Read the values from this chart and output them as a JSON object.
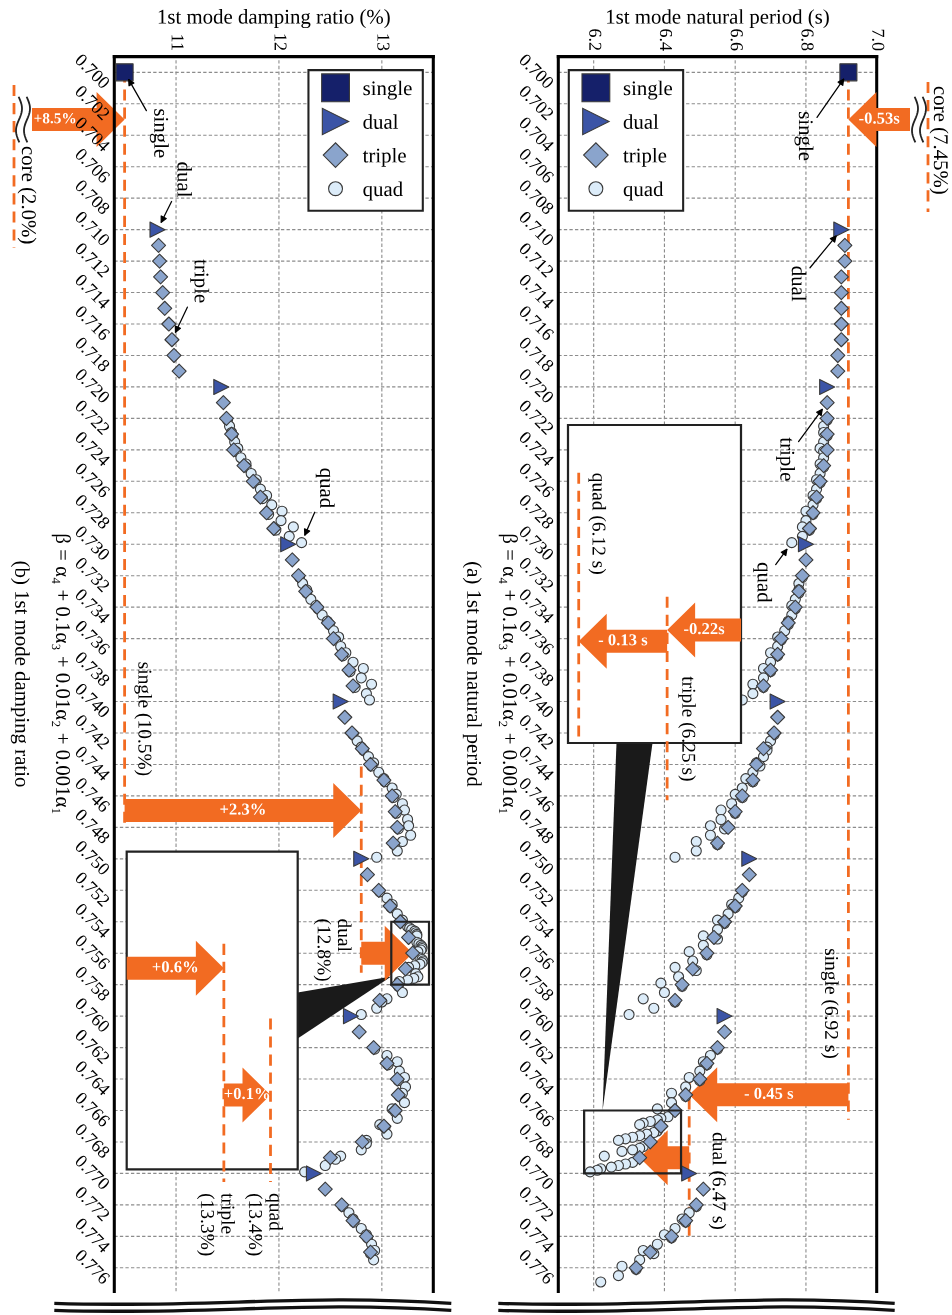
{
  "chart_data": [
    {
      "type": "scatter",
      "title": "(a) 1st mode natural period",
      "xlabel": "1st mode natural period (s)",
      "ylabel": "β = α₄ + 0.1α₃ + 0.01α₂ + 0.001α₁",
      "xlim": [
        6.1,
        7.0
      ],
      "xticks": [
        6.2,
        6.4,
        6.6,
        6.8,
        {
          "value": 7.0,
          "label": "7.0"
        }
      ],
      "ylim": [
        0.7775,
        0.699
      ],
      "yticks": [
        {
          "value": 0.7,
          "label": "0.700"
        },
        {
          "value": 0.702,
          "label": "0.702"
        },
        {
          "value": 0.704,
          "label": "0.704"
        },
        {
          "value": 0.706,
          "label": "0.706"
        },
        {
          "value": 0.708,
          "label": "0.708"
        },
        {
          "value": 0.71,
          "label": "0.710"
        },
        {
          "value": 0.712,
          "label": "0.712"
        },
        {
          "value": 0.714,
          "label": "0.714"
        },
        {
          "value": 0.716,
          "label": "0.716"
        },
        {
          "value": 0.718,
          "label": "0.718"
        },
        {
          "value": 0.72,
          "label": "0.720"
        },
        {
          "value": 0.722,
          "label": "0.722"
        },
        {
          "value": 0.724,
          "label": "0.724"
        },
        {
          "value": 0.726,
          "label": "0.726"
        },
        {
          "value": 0.728,
          "label": "0.728"
        },
        {
          "value": 0.73,
          "label": "0.730"
        },
        {
          "value": 0.732,
          "label": "0.732"
        },
        {
          "value": 0.734,
          "label": "0.734"
        },
        {
          "value": 0.736,
          "label": "0.736"
        },
        {
          "value": 0.738,
          "label": "0.738"
        },
        {
          "value": 0.74,
          "label": "0.740"
        },
        {
          "value": 0.742,
          "label": "0.742"
        },
        {
          "value": 0.744,
          "label": "0.744"
        },
        {
          "value": 0.746,
          "label": "0.746"
        },
        {
          "value": 0.748,
          "label": "0.748"
        },
        {
          "value": 0.75,
          "label": "0.750"
        },
        {
          "value": 0.752,
          "label": "0.752"
        },
        {
          "value": 0.754,
          "label": "0.754"
        },
        {
          "value": 0.756,
          "label": "0.756"
        },
        {
          "value": 0.758,
          "label": "0.758"
        },
        {
          "value": 0.76,
          "label": "0.760"
        },
        {
          "value": 0.762,
          "label": "0.762"
        },
        {
          "value": 0.764,
          "label": "0.764"
        },
        {
          "value": 0.766,
          "label": "0.766"
        },
        {
          "value": 0.768,
          "label": "0.768"
        },
        {
          "value": 0.77,
          "label": "0.770"
        },
        {
          "value": 0.772,
          "label": "0.772"
        },
        {
          "value": 0.774,
          "label": "0.774"
        },
        {
          "value": 0.776,
          "label": "0.776"
        }
      ],
      "grid": true,
      "legend": "top left",
      "series": [
        {
          "name": "single",
          "color": "#15206a",
          "marker": "square",
          "x": [
            6.92
          ],
          "values": [
            0.7
          ]
        },
        {
          "name": "dual",
          "color": "#3b54a6",
          "marker": "triangle",
          "x": [
            6.9,
            6.86,
            6.8,
            6.72,
            6.64,
            6.57,
            6.47
          ],
          "values": [
            0.71,
            0.72,
            0.73,
            0.74,
            0.75,
            0.76,
            0.77
          ]
        },
        {
          "name": "triple",
          "color": "#8aa4cc",
          "marker": "diamond",
          "x": [
            6.91,
            6.91,
            6.9,
            6.9,
            6.9,
            6.9,
            6.9,
            6.89,
            6.89,
            6.86,
            6.86,
            6.86,
            6.86,
            6.85,
            6.84,
            6.83,
            6.82,
            6.81,
            6.8,
            6.79,
            6.78,
            6.77,
            6.75,
            6.73,
            6.72,
            6.7,
            6.68,
            6.72,
            6.71,
            6.68,
            6.66,
            6.65,
            6.62,
            6.6,
            6.58,
            6.55,
            6.64,
            6.62,
            6.6,
            6.57,
            6.54,
            6.52,
            6.48,
            6.45,
            6.43,
            6.57,
            6.55,
            6.52,
            6.5,
            6.46,
            6.43,
            6.39,
            6.36,
            6.33,
            6.51,
            6.49,
            6.46,
            6.42,
            6.36,
            6.32
          ],
          "values": [
            0.711,
            0.712,
            0.713,
            0.714,
            0.715,
            0.716,
            0.717,
            0.718,
            0.719,
            0.721,
            0.722,
            0.723,
            0.724,
            0.725,
            0.726,
            0.727,
            0.728,
            0.729,
            0.731,
            0.732,
            0.733,
            0.734,
            0.735,
            0.736,
            0.737,
            0.738,
            0.739,
            0.741,
            0.742,
            0.743,
            0.744,
            0.745,
            0.746,
            0.747,
            0.748,
            0.749,
            0.751,
            0.752,
            0.753,
            0.754,
            0.755,
            0.756,
            0.757,
            0.758,
            0.759,
            0.761,
            0.762,
            0.763,
            0.764,
            0.765,
            0.766,
            0.767,
            0.768,
            0.769,
            0.771,
            0.772,
            0.773,
            0.774,
            0.775,
            0.776
          ]
        },
        {
          "name": "quad",
          "color": "#dcecf9",
          "marker": "circle",
          "x": [
            6.86,
            6.85,
            6.85,
            6.86,
            6.85,
            6.84,
            6.85,
            6.85,
            6.84,
            6.85,
            6.84,
            6.83,
            6.84,
            6.83,
            6.82,
            6.83,
            6.82,
            6.8,
            6.82,
            6.8,
            6.79,
            6.81,
            6.79,
            6.76,
            6.79,
            6.78,
            6.78,
            6.78,
            6.77,
            6.76,
            6.77,
            6.76,
            6.75,
            6.75,
            6.74,
            6.72,
            6.73,
            6.72,
            6.7,
            6.72,
            6.7,
            6.68,
            6.7,
            6.68,
            6.65,
            6.68,
            6.65,
            6.62,
            6.71,
            6.7,
            6.69,
            6.69,
            6.68,
            6.66,
            6.67,
            6.65,
            6.63,
            6.65,
            6.62,
            6.6,
            6.62,
            6.59,
            6.56,
            6.6,
            6.56,
            6.53,
            6.57,
            6.53,
            6.49,
            6.55,
            6.49,
            6.43,
            6.62,
            6.61,
            6.59,
            6.6,
            6.58,
            6.55,
            6.57,
            6.55,
            6.51,
            6.55,
            6.51,
            6.47,
            6.52,
            6.48,
            6.43,
            6.49,
            6.44,
            6.39,
            6.45,
            6.4,
            6.34,
            6.43,
            6.37,
            6.3,
            6.55,
            6.53,
            6.51,
            6.52,
            6.5,
            6.47,
            6.5,
            6.46,
            6.42,
            6.46,
            6.42,
            6.38,
            6.41,
            6.39,
            6.38,
            6.36,
            6.34,
            6.33,
            6.38,
            6.37,
            6.35,
            6.33,
            6.31,
            6.29,
            6.27,
            6.34,
            6.33,
            6.31,
            6.28,
            6.23,
            6.31,
            6.29,
            6.27,
            6.25,
            6.22,
            6.21,
            6.19,
            6.49,
            6.47,
            6.45,
            6.46,
            6.43,
            6.4,
            6.42,
            6.38,
            6.34,
            6.37,
            6.33,
            6.28,
            6.32,
            6.27,
            6.22
          ],
          "values": [
            0.7221,
            0.7225,
            0.7229,
            0.7231,
            0.7235,
            0.7239,
            0.7241,
            0.7245,
            0.7249,
            0.7251,
            0.7255,
            0.7259,
            0.7261,
            0.7265,
            0.7269,
            0.7271,
            0.7275,
            0.7279,
            0.7281,
            0.7285,
            0.7289,
            0.7291,
            0.7295,
            0.7299,
            0.7321,
            0.7325,
            0.7329,
            0.7331,
            0.7335,
            0.7339,
            0.7341,
            0.7345,
            0.7349,
            0.7351,
            0.7355,
            0.7359,
            0.7361,
            0.7365,
            0.7369,
            0.7371,
            0.7375,
            0.7379,
            0.7381,
            0.7385,
            0.7389,
            0.7391,
            0.7395,
            0.7399,
            0.7421,
            0.7425,
            0.7429,
            0.7431,
            0.7435,
            0.7439,
            0.7441,
            0.7445,
            0.7449,
            0.7451,
            0.7455,
            0.7459,
            0.7461,
            0.7465,
            0.7469,
            0.7471,
            0.7475,
            0.7479,
            0.7481,
            0.7485,
            0.7489,
            0.7491,
            0.7495,
            0.7499,
            0.7521,
            0.7525,
            0.7529,
            0.7531,
            0.7535,
            0.7539,
            0.7541,
            0.7545,
            0.7549,
            0.7551,
            0.7555,
            0.7559,
            0.7561,
            0.7565,
            0.7569,
            0.7571,
            0.7575,
            0.7579,
            0.7581,
            0.7585,
            0.7589,
            0.7591,
            0.7595,
            0.7599,
            0.7621,
            0.7625,
            0.7629,
            0.7631,
            0.7635,
            0.7639,
            0.7641,
            0.7645,
            0.7649,
            0.7651,
            0.7655,
            0.7659,
            0.7664,
            0.7665,
            0.7666,
            0.7667,
            0.7668,
            0.7669,
            0.7673,
            0.7674,
            0.7675,
            0.7676,
            0.7677,
            0.7678,
            0.7679,
            0.7683,
            0.7684,
            0.7685,
            0.7686,
            0.7689,
            0.7693,
            0.7694,
            0.7695,
            0.7696,
            0.7697,
            0.7698,
            0.7699,
            0.7721,
            0.7725,
            0.7729,
            0.7731,
            0.7735,
            0.7739,
            0.7741,
            0.7745,
            0.7749,
            0.7751,
            0.7755,
            0.7759,
            0.7761,
            0.7765,
            0.7769
          ]
        }
      ],
      "ref_lines": [
        {
          "axis": "x",
          "value": 6.92,
          "label": "single (6.92 s)",
          "color": "#f26b22",
          "line_style": "dashed"
        },
        {
          "axis": "x",
          "value": 6.47,
          "label": "dual (6.47 s)",
          "color": "#f26b22",
          "line_style": "dashed"
        }
      ],
      "annotations": [
        "core (7.45%)",
        {
          "text": "single",
          "x": 6.92,
          "y": 0.7
        },
        {
          "text": "dual",
          "x": 6.9,
          "y": 0.71
        },
        {
          "text": "triple",
          "x": 6.86,
          "y": 0.721
        },
        {
          "text": "quad",
          "x": 6.76,
          "y": 0.7299
        },
        "-0.53s",
        "- 0.45 s",
        "triple (6.25 s)",
        "quad (6.12 s)",
        "-0.22s",
        "- 0.13 s"
      ]
    },
    {
      "type": "scatter",
      "title": "(b) 1st mode damping ratio",
      "xlabel": "1st mode damping ratio (%)",
      "ylabel": "β = α₄ + 0.1α₃ + 0.01α₂ + 0.001α₁",
      "xlim": [
        10.4,
        13.5
      ],
      "xticks": [
        11,
        12,
        13
      ],
      "ylim": [
        0.7775,
        0.699
      ],
      "yticks": [
        {
          "value": 0.7,
          "label": "0.700"
        },
        {
          "value": 0.702,
          "label": "0.702"
        },
        {
          "value": 0.704,
          "label": "0.704"
        },
        {
          "value": 0.706,
          "label": "0.706"
        },
        {
          "value": 0.708,
          "label": "0.708"
        },
        {
          "value": 0.71,
          "label": "0.710"
        },
        {
          "value": 0.712,
          "label": "0.712"
        },
        {
          "value": 0.714,
          "label": "0.714"
        },
        {
          "value": 0.716,
          "label": "0.716"
        },
        {
          "value": 0.718,
          "label": "0.718"
        },
        {
          "value": 0.72,
          "label": "0.720"
        },
        {
          "value": 0.722,
          "label": "0.722"
        },
        {
          "value": 0.724,
          "label": "0.724"
        },
        {
          "value": 0.726,
          "label": "0.726"
        },
        {
          "value": 0.728,
          "label": "0.728"
        },
        {
          "value": 0.73,
          "label": "0.730"
        },
        {
          "value": 0.732,
          "label": "0.732"
        },
        {
          "value": 0.734,
          "label": "0.734"
        },
        {
          "value": 0.736,
          "label": "0.736"
        },
        {
          "value": 0.738,
          "label": "0.738"
        },
        {
          "value": 0.74,
          "label": "0.740"
        },
        {
          "value": 0.742,
          "label": "0.742"
        },
        {
          "value": 0.744,
          "label": "0.744"
        },
        {
          "value": 0.746,
          "label": "0.746"
        },
        {
          "value": 0.748,
          "label": "0.748"
        },
        {
          "value": 0.75,
          "label": "0.750"
        },
        {
          "value": 0.752,
          "label": "0.752"
        },
        {
          "value": 0.754,
          "label": "0.754"
        },
        {
          "value": 0.756,
          "label": "0.756"
        },
        {
          "value": 0.758,
          "label": "0.758"
        },
        {
          "value": 0.76,
          "label": "0.760"
        },
        {
          "value": 0.762,
          "label": "0.762"
        },
        {
          "value": 0.764,
          "label": "0.764"
        },
        {
          "value": 0.766,
          "label": "0.766"
        },
        {
          "value": 0.768,
          "label": "0.768"
        },
        {
          "value": 0.77,
          "label": "0.770"
        },
        {
          "value": 0.772,
          "label": "0.772"
        },
        {
          "value": 0.774,
          "label": "0.774"
        },
        {
          "value": 0.776,
          "label": "0.776"
        }
      ],
      "grid": true,
      "legend": "top right",
      "series": [
        {
          "name": "single",
          "color": "#15206a",
          "marker": "square",
          "x": [
            10.5
          ],
          "values": [
            0.7
          ]
        },
        {
          "name": "dual",
          "color": "#3b54a6",
          "marker": "triangle",
          "x": [
            10.82,
            11.44,
            12.09,
            12.6,
            12.8,
            12.7,
            12.34
          ],
          "values": [
            0.71,
            0.72,
            0.73,
            0.74,
            0.75,
            0.76,
            0.77
          ]
        },
        {
          "name": "triple",
          "color": "#8aa4cc",
          "marker": "diamond",
          "x": [
            10.83,
            10.84,
            10.85,
            10.87,
            10.89,
            10.93,
            10.96,
            10.98,
            11.03,
            11.46,
            11.49,
            11.54,
            11.56,
            11.66,
            11.75,
            11.82,
            11.88,
            11.95,
            12.13,
            12.19,
            12.26,
            12.37,
            12.48,
            12.53,
            12.61,
            12.68,
            12.72,
            12.64,
            12.71,
            12.81,
            12.89,
            13.02,
            13.1,
            13.13,
            13.15,
            13.11,
            12.86,
            12.97,
            13.08,
            13.18,
            13.26,
            13.3,
            13.23,
            13.15,
            12.98,
            12.78,
            12.92,
            13.05,
            13.15,
            13.16,
            13.13,
            13.02,
            12.81,
            12.5,
            12.45,
            12.61,
            12.72,
            12.85,
            12.89
          ],
          "values": [
            0.711,
            0.712,
            0.713,
            0.714,
            0.715,
            0.716,
            0.717,
            0.718,
            0.719,
            0.721,
            0.722,
            0.723,
            0.724,
            0.725,
            0.726,
            0.727,
            0.728,
            0.729,
            0.731,
            0.732,
            0.733,
            0.734,
            0.735,
            0.736,
            0.737,
            0.738,
            0.739,
            0.741,
            0.742,
            0.743,
            0.744,
            0.745,
            0.746,
            0.747,
            0.748,
            0.749,
            0.751,
            0.752,
            0.753,
            0.754,
            0.755,
            0.756,
            0.757,
            0.758,
            0.759,
            0.761,
            0.762,
            0.763,
            0.764,
            0.765,
            0.766,
            0.767,
            0.768,
            0.769,
            0.771,
            0.772,
            0.773,
            0.774,
            0.775
          ]
        },
        {
          "name": "quad",
          "color": "#dcecf9",
          "marker": "circle",
          "x": [
            11.5,
            11.52,
            11.54,
            11.55,
            11.57,
            11.6,
            11.58,
            11.63,
            11.68,
            11.68,
            11.73,
            11.78,
            11.77,
            11.82,
            11.88,
            11.84,
            11.93,
            12.03,
            11.9,
            12.02,
            12.14,
            11.97,
            12.1,
            12.22,
            12.2,
            12.23,
            12.27,
            12.27,
            12.31,
            12.36,
            12.38,
            12.42,
            12.47,
            12.49,
            12.53,
            12.58,
            12.55,
            12.6,
            12.65,
            12.62,
            12.72,
            12.82,
            12.69,
            12.8,
            12.9,
            12.74,
            12.85,
            12.88,
            12.72,
            12.76,
            12.8,
            12.82,
            12.87,
            12.92,
            12.9,
            12.97,
            13.02,
            13.03,
            13.1,
            13.14,
            13.11,
            13.2,
            13.22,
            13.14,
            13.25,
            13.26,
            13.16,
            13.28,
            13.2,
            13.12,
            13.15,
            12.95,
            12.98,
            13.05,
            13.1,
            13.09,
            13.15,
            13.2,
            13.25,
            13.27,
            13.29,
            13.32,
            13.33,
            13.34,
            13.34,
            13.34,
            13.36,
            13.38,
            13.39,
            13.39,
            13.38,
            13.35,
            13.37,
            13.39,
            13.4,
            13.39,
            13.37,
            13.32,
            13.26,
            13.33,
            13.35,
            13.31,
            13.25,
            13.17,
            13.16,
            13.2,
            13.05,
            13.0,
            12.95,
            12.8,
            12.93,
            13.05,
            13.15,
            13.06,
            13.17,
            13.22,
            13.16,
            13.23,
            13.2,
            13.17,
            13.22,
            13.1,
            13.13,
            13.15,
            12.98,
            13.03,
            13.05,
            12.85,
            12.85,
            12.8,
            12.6,
            12.55,
            12.45,
            12.25,
            12.62,
            12.68,
            12.72,
            12.73,
            12.8,
            12.85,
            12.86,
            12.9,
            12.93,
            12.89,
            12.92
          ],
          "values": [
            0.7221,
            0.7225,
            0.7229,
            0.7231,
            0.7235,
            0.7239,
            0.7241,
            0.7245,
            0.7249,
            0.7251,
            0.7255,
            0.7259,
            0.7261,
            0.7265,
            0.7269,
            0.7271,
            0.7275,
            0.7279,
            0.7281,
            0.7285,
            0.7289,
            0.7291,
            0.7295,
            0.7299,
            0.7321,
            0.7325,
            0.7329,
            0.7331,
            0.7335,
            0.7339,
            0.7341,
            0.7345,
            0.7349,
            0.7351,
            0.7355,
            0.7359,
            0.7361,
            0.7365,
            0.7369,
            0.7371,
            0.7375,
            0.7379,
            0.7381,
            0.7385,
            0.7389,
            0.7391,
            0.7395,
            0.7399,
            0.7421,
            0.7425,
            0.7429,
            0.7431,
            0.7435,
            0.7439,
            0.7441,
            0.7445,
            0.7449,
            0.7451,
            0.7455,
            0.7459,
            0.7461,
            0.7465,
            0.7469,
            0.7471,
            0.7475,
            0.7479,
            0.7481,
            0.7485,
            0.7489,
            0.7491,
            0.7495,
            0.7499,
            0.7521,
            0.7525,
            0.7529,
            0.7531,
            0.7535,
            0.7539,
            0.7543,
            0.7544,
            0.7545,
            0.7546,
            0.7547,
            0.7548,
            0.7549,
            0.7553,
            0.7554,
            0.7555,
            0.7556,
            0.7557,
            0.7558,
            0.7559,
            0.7563,
            0.7564,
            0.7565,
            0.7566,
            0.7567,
            0.7568,
            0.7569,
            0.7573,
            0.7575,
            0.7576,
            0.7577,
            0.7578,
            0.7581,
            0.7585,
            0.7589,
            0.7591,
            0.7595,
            0.7599,
            0.7621,
            0.7625,
            0.7629,
            0.7631,
            0.7635,
            0.7639,
            0.7641,
            0.7645,
            0.7649,
            0.7651,
            0.7655,
            0.7659,
            0.7661,
            0.7665,
            0.7669,
            0.7671,
            0.7675,
            0.7679,
            0.7681,
            0.7685,
            0.7689,
            0.7691,
            0.7695,
            0.7699,
            0.7721,
            0.7725,
            0.7729,
            0.7731,
            0.7735,
            0.7739,
            0.7741,
            0.7745,
            0.7749,
            0.7751,
            0.7755
          ]
        }
      ],
      "ref_lines": [
        {
          "axis": "x",
          "value": 10.5,
          "label": "single (10.5%)",
          "color": "#f26b22",
          "line_style": "dashed"
        },
        {
          "axis": "x",
          "value": 12.8,
          "label": "dual\n(12.8%)",
          "color": "#f26b22",
          "line_style": "dashed"
        }
      ],
      "annotations": [
        "core (2.0%)",
        {
          "text": "single",
          "x": 10.5,
          "y": 0.7
        },
        {
          "text": "dual",
          "x": 10.82,
          "y": 0.71
        },
        {
          "text": "triple",
          "x": 10.96,
          "y": 0.717
        },
        {
          "text": "quad",
          "x": 12.22,
          "y": 0.7299
        },
        "+8.5%",
        "+2.3%",
        "triple\n(13.3%)",
        "quad\n(13.4%)",
        "+0.6%",
        "+0.1%"
      ]
    }
  ]
}
